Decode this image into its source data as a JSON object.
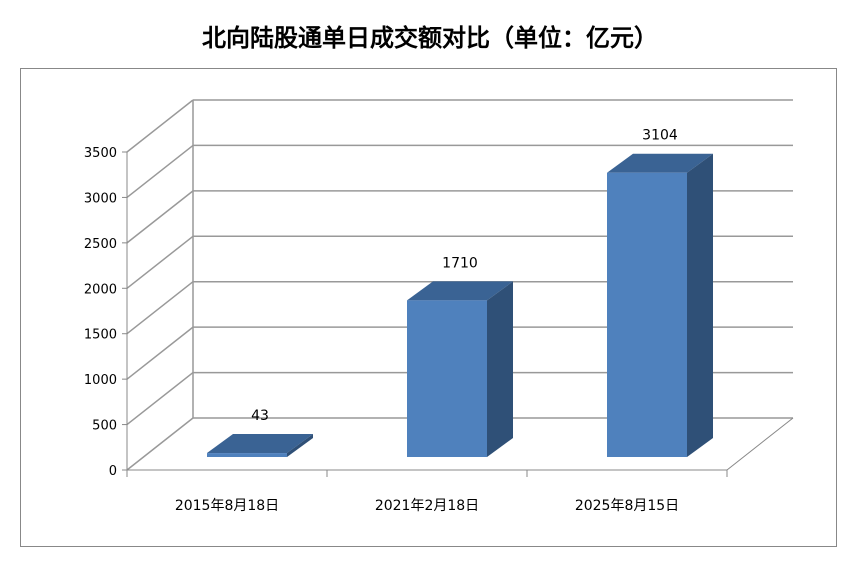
{
  "chart_data": {
    "type": "bar",
    "title": "北向陆股通单日成交额对比（单位：亿元）",
    "categories": [
      "2015年8月18日",
      "2021年2月18日",
      "2025年8月15日"
    ],
    "values": [
      43,
      1710,
      3104
    ],
    "data_labels": [
      "43",
      "1710",
      "3104"
    ],
    "xlabel": "",
    "ylabel": "",
    "ylim": [
      0,
      3500
    ],
    "yticks": [
      "0",
      "500",
      "1000",
      "1500",
      "2000",
      "2500",
      "3000",
      "3500"
    ],
    "grid": true,
    "style": "3d-column",
    "colors": {
      "front": "#4f81bd",
      "top": "#3a6394",
      "side": "#2f5077"
    }
  }
}
